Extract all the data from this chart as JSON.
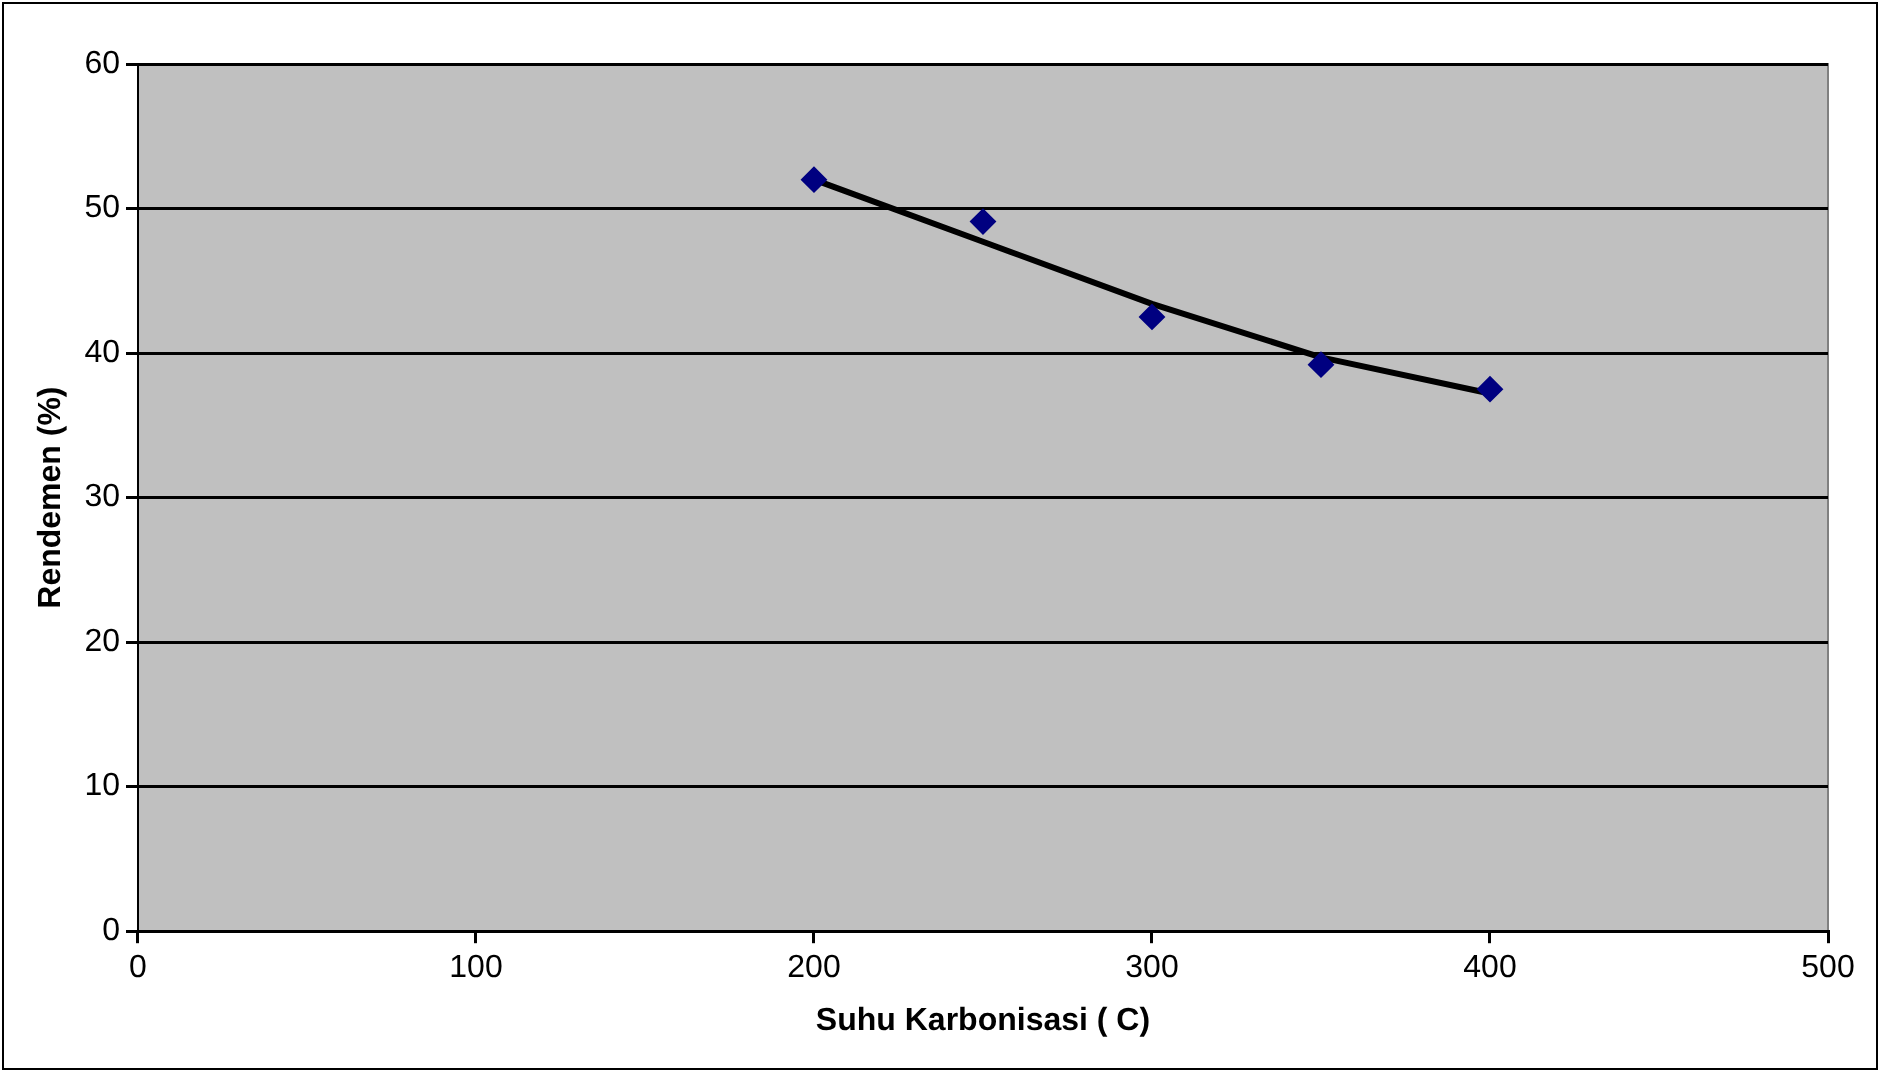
{
  "chart_data": {
    "type": "scatter",
    "xlabel": "Suhu Karbonisasi ( C)",
    "ylabel": "Rendemen (%)",
    "xlim": [
      0,
      500
    ],
    "xticks": [
      0,
      100,
      200,
      300,
      400,
      500
    ],
    "ylim": [
      0,
      60
    ],
    "yticks": [
      0,
      10,
      20,
      30,
      40,
      50,
      60
    ],
    "grid": "y",
    "legend": false,
    "marker": "diamond",
    "series": [
      {
        "color": "#000080",
        "x": [
          200,
          250,
          300,
          350,
          400
        ],
        "values": [
          52.0,
          49.1,
          42.5,
          39.2,
          37.5
        ]
      },
      {
        "type": "line",
        "color": "#000000",
        "marker": "none",
        "x": [
          200,
          250,
          300,
          350,
          400
        ],
        "values": [
          52.0,
          47.7,
          43.4,
          39.7,
          37.2
        ]
      }
    ]
  }
}
